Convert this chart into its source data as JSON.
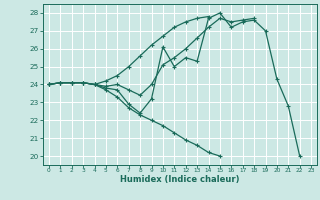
{
  "xlabel": "Humidex (Indice chaleur)",
  "bg_color": "#cce8e4",
  "line_color": "#1a6b5a",
  "grid_color": "#b0d8d2",
  "xlim": [
    -0.5,
    23.5
  ],
  "ylim": [
    19.5,
    28.5
  ],
  "xticks": [
    0,
    1,
    2,
    3,
    4,
    5,
    6,
    7,
    8,
    9,
    10,
    11,
    12,
    13,
    14,
    15,
    16,
    17,
    18,
    19,
    20,
    21,
    22,
    23
  ],
  "yticks": [
    20,
    21,
    22,
    23,
    24,
    25,
    26,
    27,
    28
  ],
  "series": [
    {
      "x": [
        0,
        1,
        2,
        3,
        4,
        5,
        6,
        7,
        8,
        9,
        10,
        11,
        12,
        13,
        14,
        15,
        16,
        17,
        18,
        19,
        20,
        21,
        22
      ],
      "y": [
        24.0,
        24.1,
        24.1,
        24.1,
        24.0,
        23.8,
        23.7,
        22.9,
        22.4,
        23.2,
        26.1,
        25.0,
        25.5,
        25.3,
        27.7,
        28.0,
        27.2,
        27.5,
        27.6,
        27.0,
        24.3,
        22.8,
        20.0
      ]
    },
    {
      "x": [
        0,
        1,
        2,
        3,
        4,
        5,
        6,
        7,
        8,
        9,
        10,
        11,
        12,
        13,
        14,
        15,
        16,
        17,
        18
      ],
      "y": [
        24.0,
        24.1,
        24.1,
        24.1,
        24.0,
        23.9,
        24.0,
        23.7,
        23.4,
        24.0,
        25.1,
        25.5,
        26.0,
        26.6,
        27.2,
        27.7,
        27.5,
        27.6,
        27.7
      ]
    },
    {
      "x": [
        0,
        1,
        2,
        3,
        4,
        5,
        6,
        7,
        8,
        9,
        10,
        11,
        12,
        13,
        14
      ],
      "y": [
        24.0,
        24.1,
        24.1,
        24.1,
        24.0,
        24.2,
        24.5,
        25.0,
        25.6,
        26.2,
        26.7,
        27.2,
        27.5,
        27.7,
        27.8
      ]
    },
    {
      "x": [
        0,
        1,
        2,
        3,
        4,
        5,
        6,
        7,
        8,
        9,
        10,
        11,
        12,
        13,
        14,
        15
      ],
      "y": [
        24.0,
        24.1,
        24.1,
        24.1,
        24.0,
        23.7,
        23.3,
        22.7,
        22.3,
        22.0,
        21.7,
        21.3,
        20.9,
        20.6,
        20.2,
        20.0
      ]
    }
  ]
}
